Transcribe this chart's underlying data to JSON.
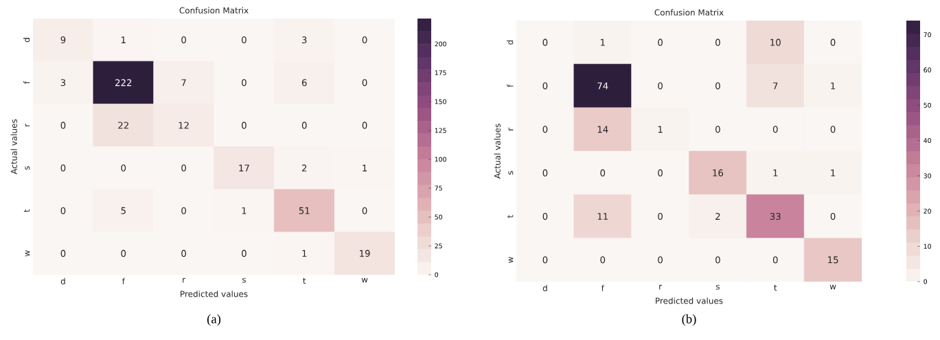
{
  "chart_data": [
    {
      "type": "heatmap",
      "title": "Confusion Matrix",
      "xlabel": "Predicted values",
      "ylabel": "Actual values",
      "categories": [
        "d",
        "f",
        "r",
        "s",
        "t",
        "w"
      ],
      "y_categories": [
        "d",
        "f",
        "r",
        "s",
        "t",
        "w"
      ],
      "cells": [
        [
          9,
          1,
          0,
          0,
          3,
          0
        ],
        [
          3,
          222,
          7,
          0,
          6,
          0
        ],
        [
          0,
          22,
          12,
          0,
          0,
          0
        ],
        [
          0,
          0,
          0,
          17,
          2,
          1
        ],
        [
          0,
          5,
          0,
          1,
          51,
          0
        ],
        [
          0,
          0,
          0,
          0,
          1,
          19
        ]
      ],
      "clim": [
        0,
        222
      ],
      "cticks": [
        0,
        25,
        50,
        75,
        100,
        125,
        150,
        175,
        200
      ],
      "data_labels": true,
      "annotations": [
        "(a)"
      ]
    },
    {
      "type": "heatmap",
      "title": "Confusion Matrix",
      "xlabel": "Predicted values",
      "ylabel": "Actual values",
      "categories": [
        "d",
        "f",
        "r",
        "s",
        "t",
        "w"
      ],
      "y_categories": [
        "d",
        "f",
        "r",
        "s",
        "t",
        "w"
      ],
      "cells": [
        [
          0,
          1,
          0,
          0,
          10,
          0
        ],
        [
          0,
          74,
          0,
          0,
          7,
          1
        ],
        [
          0,
          14,
          1,
          0,
          0,
          0
        ],
        [
          0,
          0,
          0,
          16,
          1,
          1
        ],
        [
          0,
          11,
          0,
          2,
          33,
          0
        ],
        [
          0,
          0,
          0,
          0,
          0,
          15
        ]
      ],
      "clim": [
        0,
        74
      ],
      "cticks": [
        0,
        10,
        20,
        30,
        40,
        50,
        60,
        70
      ],
      "data_labels": true,
      "annotations": [
        "(b)"
      ]
    }
  ]
}
